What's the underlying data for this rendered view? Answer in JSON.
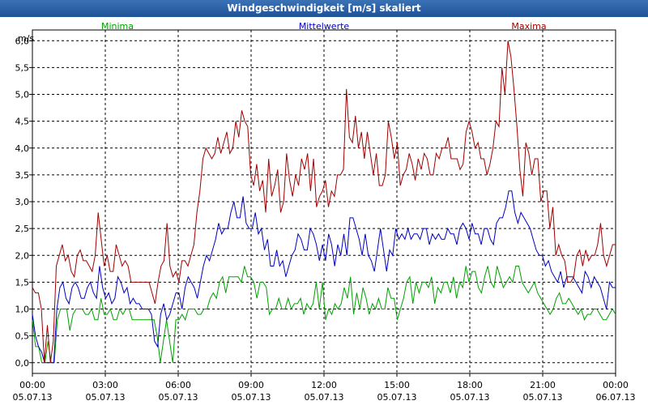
{
  "window": {
    "title": "Windgeschwindigkeit [m/s] skaliert"
  },
  "chart_data": {
    "type": "line",
    "title": "Windgeschwindigkeit [m/s] skaliert",
    "ylabel": "m/s",
    "xlabel": "",
    "ylim": [
      -0.2,
      6.2
    ],
    "xlim": [
      0,
      24
    ],
    "grid": true,
    "legend_position": "top",
    "y_ticks": [
      "0,0",
      "0,5",
      "1,0",
      "1,5",
      "2,0",
      "2,5",
      "3,0",
      "3,5",
      "4,0",
      "4,5",
      "5,0",
      "5,5",
      "6,0"
    ],
    "x_ticks": [
      {
        "time": "00:00",
        "date": "05.07.13"
      },
      {
        "time": "03:00",
        "date": "05.07.13"
      },
      {
        "time": "06:00",
        "date": "05.07.13"
      },
      {
        "time": "09:00",
        "date": "05.07.13"
      },
      {
        "time": "12:00",
        "date": "05.07.13"
      },
      {
        "time": "15:00",
        "date": "05.07.13"
      },
      {
        "time": "18:00",
        "date": "05.07.13"
      },
      {
        "time": "21:00",
        "date": "05.07.13"
      },
      {
        "time": "00:00",
        "date": "06.07.13"
      }
    ],
    "series": [
      {
        "name": "Minima",
        "color": "#00a000",
        "legend_align": "left",
        "values": [
          0.8,
          0.3,
          0.3,
          0.0,
          0.0,
          0.4,
          0.0,
          0.0,
          0.8,
          1.0,
          1.0,
          1.0,
          0.6,
          0.9,
          1.0,
          1.0,
          1.0,
          0.9,
          0.9,
          1.0,
          0.8,
          0.8,
          1.2,
          0.9,
          0.9,
          1.0,
          0.8,
          0.8,
          1.0,
          0.9,
          1.0,
          1.0,
          0.8,
          0.8,
          0.8,
          0.8,
          0.8,
          0.8,
          0.8,
          0.8,
          0.5,
          0.0,
          0.4,
          0.8,
          0.4,
          0.0,
          0.8,
          0.8,
          0.9,
          0.8,
          1.0,
          1.0,
          1.0,
          0.9,
          0.9,
          1.0,
          1.0,
          1.2,
          1.3,
          1.2,
          1.5,
          1.6,
          1.3,
          1.6,
          1.6,
          1.6,
          1.6,
          1.5,
          1.8,
          1.6,
          1.6,
          1.5,
          1.2,
          1.5,
          1.5,
          1.4,
          0.9,
          1.0,
          1.0,
          1.2,
          1.0,
          1.0,
          1.2,
          1.0,
          1.1,
          1.1,
          1.2,
          0.9,
          1.1,
          1.0,
          1.1,
          1.5,
          1.0,
          1.5,
          0.8,
          1.0,
          0.9,
          1.1,
          1.0,
          1.1,
          1.4,
          1.2,
          1.6,
          0.9,
          1.3,
          1.0,
          1.4,
          1.2,
          0.9,
          1.1,
          1.0,
          1.2,
          1.0,
          1.0,
          1.4,
          1.2,
          1.2,
          0.8,
          1.0,
          1.2,
          1.5,
          1.6,
          1.1,
          1.5,
          1.3,
          1.5,
          1.5,
          1.4,
          1.6,
          1.1,
          1.4,
          1.3,
          1.5,
          1.5,
          1.3,
          1.6,
          1.2,
          1.5,
          1.4,
          1.8,
          1.5,
          1.7,
          1.7,
          1.4,
          1.3,
          1.6,
          1.8,
          1.5,
          1.4,
          1.8,
          1.6,
          1.4,
          1.5,
          1.6,
          1.5,
          1.8,
          1.8,
          1.5,
          1.4,
          1.3,
          1.4,
          1.5,
          1.3,
          1.2,
          1.1,
          1.0,
          0.9,
          1.0,
          1.2,
          1.3,
          1.1,
          1.1,
          1.2,
          1.1,
          1.0,
          0.9,
          1.0,
          0.8,
          0.9,
          0.9,
          1.0,
          1.0,
          0.9,
          0.8,
          0.8,
          0.9,
          1.0,
          0.9
        ]
      },
      {
        "name": "Mittelwerte",
        "color": "#0000c0",
        "legend_align": "center",
        "values": [
          0.9,
          0.5,
          0.3,
          0.2,
          0.0,
          0.0,
          0.0,
          0.0,
          1.0,
          1.4,
          1.5,
          1.2,
          1.1,
          1.4,
          1.5,
          1.4,
          1.2,
          1.2,
          1.4,
          1.5,
          1.3,
          1.2,
          1.8,
          1.4,
          1.2,
          1.3,
          1.1,
          1.2,
          1.6,
          1.5,
          1.3,
          1.4,
          1.1,
          1.2,
          1.1,
          1.1,
          1.0,
          1.0,
          1.0,
          0.9,
          0.4,
          0.3,
          0.9,
          1.1,
          0.8,
          0.9,
          1.1,
          1.3,
          1.3,
          1.0,
          1.4,
          1.6,
          1.5,
          1.4,
          1.2,
          1.5,
          1.8,
          2.0,
          1.9,
          2.1,
          2.3,
          2.6,
          2.4,
          2.5,
          2.5,
          2.8,
          3.0,
          2.7,
          2.7,
          3.1,
          2.6,
          2.5,
          2.5,
          2.8,
          2.4,
          2.5,
          2.1,
          2.3,
          1.8,
          1.8,
          2.1,
          1.8,
          1.9,
          1.6,
          1.8,
          2.0,
          2.1,
          2.4,
          2.3,
          2.1,
          2.1,
          2.5,
          2.4,
          2.2,
          1.9,
          2.2,
          1.9,
          2.4,
          2.2,
          1.8,
          2.2,
          2.0,
          2.4,
          2.0,
          2.7,
          2.7,
          2.5,
          2.3,
          2.0,
          2.4,
          2.0,
          1.9,
          1.7,
          2.1,
          2.5,
          2.1,
          1.7,
          2.1,
          2.0,
          2.5,
          2.3,
          2.4,
          2.3,
          2.5,
          2.3,
          2.4,
          2.4,
          2.3,
          2.5,
          2.5,
          2.2,
          2.4,
          2.3,
          2.4,
          2.3,
          2.3,
          2.5,
          2.4,
          2.4,
          2.2,
          2.5,
          2.6,
          2.5,
          2.3,
          2.6,
          2.4,
          2.4,
          2.2,
          2.5,
          2.5,
          2.3,
          2.2,
          2.6,
          2.7,
          2.7,
          2.9,
          3.2,
          3.2,
          2.8,
          2.6,
          2.8,
          2.7,
          2.6,
          2.5,
          2.3,
          2.1,
          2.0,
          2.0,
          1.8,
          1.9,
          1.7,
          1.6,
          1.5,
          1.7,
          1.4,
          1.6,
          1.6,
          1.6,
          1.5,
          1.4,
          1.3,
          1.7,
          1.6,
          1.4,
          1.6,
          1.5,
          1.4,
          1.2,
          1.0,
          1.5,
          1.4,
          1.4
        ]
      },
      {
        "name": "Maxima",
        "color": "#a00000",
        "legend_align": "right",
        "values": [
          1.4,
          1.3,
          1.3,
          1.0,
          0.0,
          0.7,
          0.0,
          0.4,
          1.8,
          2.0,
          2.2,
          1.9,
          2.0,
          1.7,
          1.6,
          2.0,
          2.1,
          1.9,
          1.9,
          1.8,
          1.7,
          2.0,
          2.8,
          2.3,
          1.8,
          2.0,
          1.7,
          1.7,
          2.2,
          2.0,
          1.8,
          1.9,
          1.8,
          1.5,
          1.5,
          1.5,
          1.5,
          1.5,
          1.5,
          1.5,
          1.3,
          1.1,
          1.5,
          1.8,
          1.9,
          2.6,
          1.8,
          1.6,
          1.7,
          1.5,
          1.9,
          1.9,
          1.8,
          2.0,
          2.2,
          2.8,
          3.2,
          3.8,
          4.0,
          3.9,
          3.8,
          3.9,
          4.2,
          3.9,
          4.1,
          4.3,
          3.9,
          4.0,
          4.5,
          4.2,
          4.7,
          4.5,
          4.4,
          3.5,
          3.3,
          3.7,
          3.2,
          3.4,
          2.8,
          3.8,
          3.1,
          3.3,
          3.6,
          2.8,
          3.0,
          3.9,
          3.4,
          3.1,
          3.5,
          3.3,
          3.8,
          3.6,
          3.9,
          3.2,
          3.8,
          2.9,
          3.1,
          3.2,
          3.4,
          2.9,
          3.2,
          3.1,
          3.5,
          3.5,
          3.6,
          5.1,
          4.2,
          4.1,
          4.6,
          4.0,
          4.3,
          3.8,
          4.3,
          3.9,
          3.5,
          3.9,
          3.3,
          3.3,
          3.5,
          4.5,
          4.2,
          3.8,
          4.1,
          3.3,
          3.5,
          3.6,
          3.9,
          3.7,
          3.4,
          3.8,
          3.6,
          3.9,
          3.8,
          3.5,
          3.5,
          3.9,
          3.8,
          4.0,
          4.0,
          4.2,
          3.8,
          3.8,
          3.8,
          3.6,
          3.7,
          4.3,
          4.5,
          4.3,
          4.0,
          4.1,
          3.8,
          3.8,
          3.5,
          3.7,
          4.0,
          4.5,
          4.4,
          5.5,
          5.0,
          6.0,
          5.7,
          5.1,
          4.4,
          3.6,
          3.1,
          4.1,
          3.9,
          3.5,
          3.8,
          3.8,
          3.0,
          3.2,
          3.2,
          2.5,
          2.9,
          2.0,
          2.2,
          2.0,
          1.9,
          1.5,
          1.5,
          1.6,
          2.0,
          2.1,
          1.8,
          2.1,
          1.9,
          2.0,
          2.0,
          2.2,
          2.6,
          2.0,
          1.8,
          2.0,
          2.2,
          2.2
        ]
      }
    ]
  }
}
